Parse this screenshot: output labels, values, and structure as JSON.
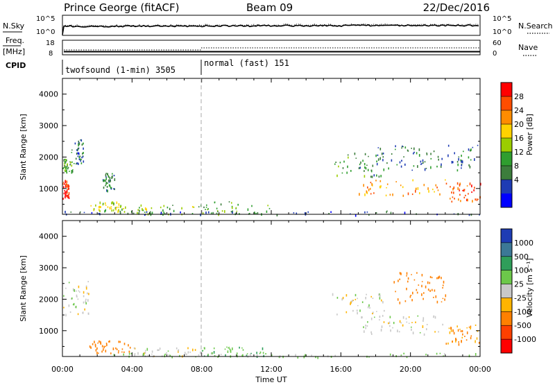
{
  "header": {
    "station": "Prince George (fitACF)",
    "beam": "Beam 09",
    "date": "22/Dec/2016"
  },
  "noise_panel": {
    "left_label": "N.Sky",
    "right_label": "N.Search",
    "left_ticks": [
      "10^5",
      "10^0"
    ],
    "right_ticks": [
      "10^5",
      "10^0"
    ]
  },
  "freq_panel": {
    "left_label": "Freq.",
    "left_unit": "[MHz]",
    "right_label": "Nave",
    "left_ticks": [
      "18",
      "8"
    ],
    "right_ticks": [
      "60",
      "0"
    ]
  },
  "cpid_panel": {
    "label": "CPID",
    "modes": [
      {
        "text": "twofsound (1-min) 3505",
        "start": "00:00"
      },
      {
        "text": "normal (fast) 151",
        "start": "08:00"
      }
    ]
  },
  "time_axis": {
    "title": "Time UT",
    "ticks": [
      "00:00",
      "04:00",
      "08:00",
      "12:00",
      "16:00",
      "20:00",
      "00:00"
    ]
  },
  "power_colorbar": {
    "title": "Power [dB]",
    "ticks": [
      "28",
      "24",
      "20",
      "16",
      "12",
      "8",
      "4"
    ],
    "colors": [
      "#ff0000",
      "#ff4d00",
      "#ff8c00",
      "#ffd200",
      "#9bcd00",
      "#2f9e2f",
      "#3c7d3c",
      "#1e3cb4",
      "#0000ff"
    ]
  },
  "velocity_colorbar": {
    "title": "Velocity [m s⁻¹]",
    "ticks": [
      "1000",
      "500",
      "100",
      "25",
      "-25",
      "-100",
      "-500",
      "-1000"
    ],
    "colors": [
      "#1e3cb4",
      "#3c7896",
      "#2f9e5a",
      "#6cc84a",
      "#c8c8c8",
      "#ffb400",
      "#ff8000",
      "#ff4000",
      "#ff0000"
    ]
  },
  "chart_data": [
    {
      "type": "heatmap",
      "title": "Power",
      "xlabel": "Time UT",
      "ylabel": "Slant Range [km]",
      "x_ticks": [
        "00:00",
        "04:00",
        "08:00",
        "12:00",
        "16:00",
        "20:00",
        "00:00"
      ],
      "y_ticks": [
        1000,
        2000,
        3000,
        4000
      ],
      "xlim_hours": [
        0,
        24
      ],
      "ylim": [
        180,
        4500
      ],
      "colorbar": "Power [dB]",
      "colorbar_range": [
        0,
        30
      ],
      "regions": [
        {
          "t": [
            0.0,
            0.35
          ],
          "r": [
            700,
            1300
          ],
          "value": 27
        },
        {
          "t": [
            0.0,
            0.6
          ],
          "r": [
            1500,
            2000
          ],
          "value": 11
        },
        {
          "t": [
            0.5,
            1.2
          ],
          "r": [
            1800,
            2600
          ],
          "value": 7
        },
        {
          "t": [
            1.5,
            3.5
          ],
          "r": [
            300,
            600
          ],
          "value": 16
        },
        {
          "t": [
            2.3,
            3.0
          ],
          "r": [
            900,
            1500
          ],
          "value": 9
        },
        {
          "t": [
            3.5,
            8.0
          ],
          "r": [
            200,
            500
          ],
          "value": 13
        },
        {
          "t": [
            8.0,
            12.0
          ],
          "r": [
            200,
            600
          ],
          "value": 12
        },
        {
          "t": [
            15.5,
            18.5
          ],
          "r": [
            1400,
            2200
          ],
          "value": 10
        },
        {
          "t": [
            17.0,
            22.0
          ],
          "r": [
            800,
            1300
          ],
          "value": 21
        },
        {
          "t": [
            22.0,
            24.0
          ],
          "r": [
            600,
            1200
          ],
          "value": 25
        },
        {
          "t": [
            18.0,
            24.0
          ],
          "r": [
            1600,
            2400
          ],
          "value": 8
        },
        {
          "t": [
            0.0,
            24.0
          ],
          "r": [
            180,
            300
          ],
          "value": 6
        }
      ]
    },
    {
      "type": "heatmap",
      "title": "Velocity",
      "xlabel": "Time UT",
      "ylabel": "Slant Range [km]",
      "x_ticks": [
        "00:00",
        "04:00",
        "08:00",
        "12:00",
        "16:00",
        "20:00",
        "00:00"
      ],
      "y_ticks": [
        1000,
        2000,
        3000,
        4000
      ],
      "xlim_hours": [
        0,
        24
      ],
      "ylim": [
        180,
        4500
      ],
      "colorbar": "Velocity [m s⁻¹]",
      "colorbar_range": [
        -1000,
        1000
      ],
      "regions": [
        {
          "t": [
            0.0,
            1.5
          ],
          "r": [
            1500,
            2600
          ],
          "value": 0
        },
        {
          "t": [
            1.5,
            4.0
          ],
          "r": [
            300,
            700
          ],
          "value": -150
        },
        {
          "t": [
            4.0,
            8.0
          ],
          "r": [
            200,
            500
          ],
          "value": 0
        },
        {
          "t": [
            8.0,
            12.0
          ],
          "r": [
            200,
            500
          ],
          "value": 80
        },
        {
          "t": [
            15.5,
            18.5
          ],
          "r": [
            1500,
            2200
          ],
          "value": 0
        },
        {
          "t": [
            17.0,
            22.0
          ],
          "r": [
            900,
            1500
          ],
          "value": 0
        },
        {
          "t": [
            19.0,
            22.0
          ],
          "r": [
            1900,
            2900
          ],
          "value": -400
        },
        {
          "t": [
            22.0,
            24.0
          ],
          "r": [
            600,
            1200
          ],
          "value": -120
        },
        {
          "t": [
            0.0,
            24.0
          ],
          "r": [
            180,
            300
          ],
          "value": 50
        }
      ]
    }
  ]
}
